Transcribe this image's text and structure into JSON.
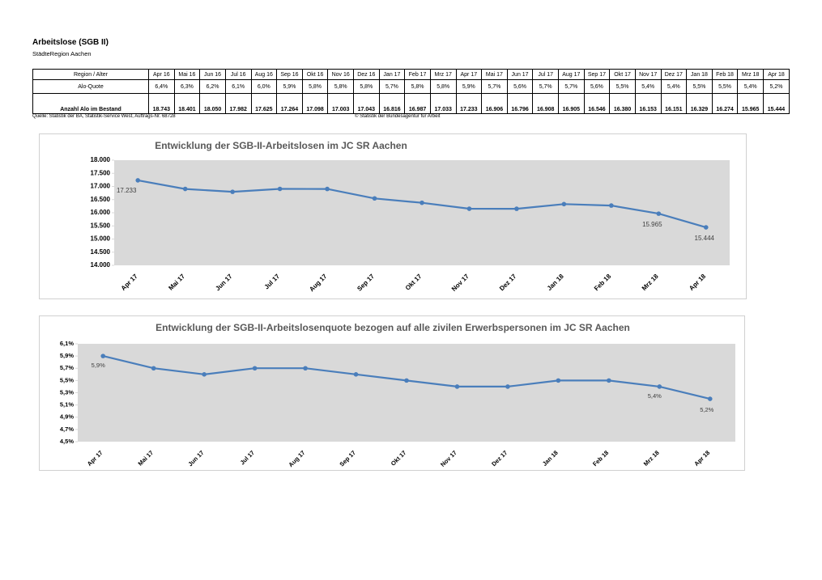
{
  "header": {
    "title": "Arbeitslose (SGB II)",
    "subtitle": "StädteRegion Aachen"
  },
  "table": {
    "corner": "Region / Alter",
    "columns": [
      "Apr 16",
      "Mai 16",
      "Jun 16",
      "Jul 16",
      "Aug 16",
      "Sep 16",
      "Okt 16",
      "Nov 16",
      "Dez 16",
      "Jan 17",
      "Feb 17",
      "Mrz 17",
      "Apr 17",
      "Mai 17",
      "Jun 17",
      "Jul 17",
      "Aug 17",
      "Sep 17",
      "Okt 17",
      "Nov 17",
      "Dez 17",
      "Jan 18",
      "Feb 18",
      "Mrz 18",
      "Apr 18"
    ],
    "rows": [
      {
        "label": "Alo-Quote",
        "cells": [
          "6,4%",
          "6,3%",
          "6,2%",
          "6,1%",
          "6,0%",
          "5,9%",
          "5,8%",
          "5,8%",
          "5,8%",
          "5,7%",
          "5,8%",
          "5,8%",
          "5,9%",
          "5,7%",
          "5,6%",
          "5,7%",
          "5,7%",
          "5,6%",
          "5,5%",
          "5,4%",
          "5,4%",
          "5,5%",
          "5,5%",
          "5,4%",
          "5,2%"
        ]
      },
      {
        "label": "Anzahl Alo im Bestand",
        "cells": [
          "18.743",
          "18.401",
          "18.050",
          "17.982",
          "17.625",
          "17.264",
          "17.098",
          "17.003",
          "17.043",
          "16.816",
          "16.987",
          "17.033",
          "17.233",
          "16.906",
          "16.796",
          "16.908",
          "16.905",
          "16.546",
          "16.380",
          "16.153",
          "16.151",
          "16.329",
          "16.274",
          "15.965",
          "15.444"
        ]
      }
    ]
  },
  "notes": {
    "source": "Quelle: Statistik der BA, Statistik-Service West, Auftrags-Nr. 68728",
    "copyright": "© Statistik der Bundesagentur für Arbeit"
  },
  "chart_data": [
    {
      "type": "line",
      "title": "Entwicklung der SGB-II-Arbeitslosen im JC SR Aachen",
      "categories": [
        "Apr 17",
        "Mai 17",
        "Jun 17",
        "Jul 17",
        "Aug 17",
        "Sep 17",
        "Okt 17",
        "Nov 17",
        "Dez 17",
        "Jan 18",
        "Feb 18",
        "Mrz 18",
        "Apr 18"
      ],
      "values": [
        17233,
        16906,
        16796,
        16908,
        16905,
        16546,
        16380,
        16153,
        16151,
        16329,
        16274,
        15965,
        15444
      ],
      "value_labels": [
        "17.233",
        null,
        null,
        null,
        null,
        null,
        null,
        null,
        null,
        null,
        null,
        "15.965",
        "15.444"
      ],
      "color": "#4a7ebb",
      "ylim": [
        14000,
        18000
      ],
      "yticks": [
        {
          "value": 14000,
          "label": "14.000"
        },
        {
          "value": 14500,
          "label": "14.500"
        },
        {
          "value": 15000,
          "label": "15.000"
        },
        {
          "value": 15500,
          "label": "15.500"
        },
        {
          "value": 16000,
          "label": "16.000"
        },
        {
          "value": 16500,
          "label": "16.500"
        },
        {
          "value": 17000,
          "label": "17.000"
        },
        {
          "value": 17500,
          "label": "17.500"
        },
        {
          "value": 18000,
          "label": "18.000"
        }
      ]
    },
    {
      "type": "line",
      "title": "Entwicklung der SGB-II-Arbeitslosenquote bezogen auf alle zivilen Erwerbspersonen im JC SR Aachen",
      "categories": [
        "Apr 17",
        "Mai 17",
        "Jun 17",
        "Jul 17",
        "Aug 17",
        "Sep 17",
        "Okt 17",
        "Nov 17",
        "Dez 17",
        "Jan 18",
        "Feb 18",
        "Mrz 18",
        "Apr 18"
      ],
      "values": [
        5.9,
        5.7,
        5.6,
        5.7,
        5.7,
        5.6,
        5.5,
        5.4,
        5.4,
        5.5,
        5.5,
        5.4,
        5.2
      ],
      "value_labels": [
        "5,9%",
        null,
        null,
        null,
        null,
        null,
        null,
        null,
        null,
        null,
        null,
        "5,4%",
        "5,2%"
      ],
      "color": "#4a7ebb",
      "ylim": [
        4.5,
        6.1
      ],
      "yticks": [
        {
          "value": 4.5,
          "label": "4,5%"
        },
        {
          "value": 4.7,
          "label": "4,7%"
        },
        {
          "value": 4.9,
          "label": "4,9%"
        },
        {
          "value": 5.1,
          "label": "5,1%"
        },
        {
          "value": 5.3,
          "label": "5,3%"
        },
        {
          "value": 5.5,
          "label": "5,5%"
        },
        {
          "value": 5.7,
          "label": "5,7%"
        },
        {
          "value": 5.9,
          "label": "5,9%"
        },
        {
          "value": 6.1,
          "label": "6,1%"
        }
      ]
    }
  ]
}
